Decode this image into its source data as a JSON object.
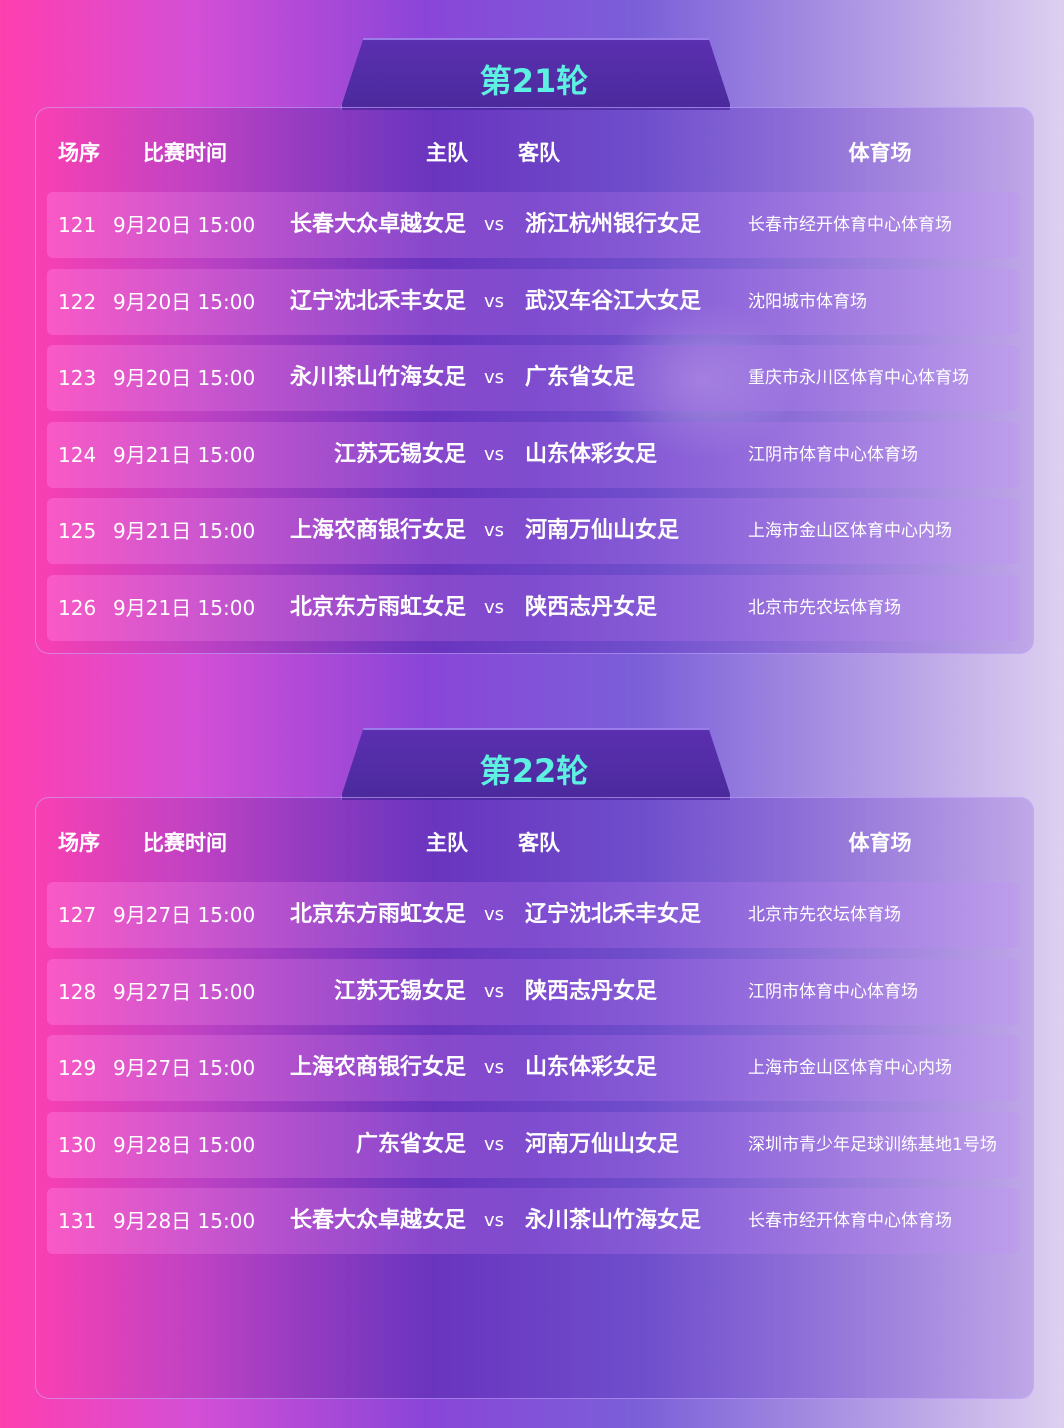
{
  "rounds": [
    {
      "title": "第21轮",
      "headers": [
        "场序",
        "比赛时间",
        "主队",
        "客队",
        "体育场"
      ],
      "rows": [
        [
          "121",
          "9月20日 15:00",
          "长春大众卓越女足",
          "vs",
          "浙江杭州银行女足",
          "长春市经开体育中心体育场"
        ],
        [
          "122",
          "9月20日 15:00",
          "辽宁沈北禾丰女足",
          "vs",
          "武汉车谷江大女足",
          "沈阳城市体育场"
        ],
        [
          "123",
          "9月20日 15:00",
          "永川茶山竹海女足",
          "vs",
          "广东省女足",
          "重庆市永川区体育中心体育场"
        ],
        [
          "124",
          "9月21日 15:00",
          "江苏无锡女足",
          "vs",
          "山东体彩女足",
          "江阴市体育中心体育场"
        ],
        [
          "125",
          "9月21日 15:00",
          "上海农商银行女足",
          "vs",
          "河南万仙山女足",
          "上海市金山区体育中心内场"
        ],
        [
          "126",
          "9月21日 15:00",
          "北京东方雨虹女足",
          "vs",
          "陕西志丹女足",
          "北京市先农坛体育场"
        ]
      ]
    },
    {
      "title": "第22轮",
      "headers": [
        "场序",
        "比赛时间",
        "主队",
        "客队",
        "体育场"
      ],
      "rows": [
        [
          "127",
          "9月27日 15:00",
          "北京东方雨虹女足",
          "vs",
          "辽宁沈北禾丰女足",
          "北京市先农坛体育场"
        ],
        [
          "128",
          "9月27日 15:00",
          "江苏无锡女足",
          "vs",
          "陕西志丹女足",
          "江阴市体育中心体育场"
        ],
        [
          "129",
          "9月27日 15:00",
          "上海农商银行女足",
          "vs",
          "山东体彩女足",
          "上海市金山区体育中心内场"
        ],
        [
          "130",
          "9月28日 15:00",
          "广东省女足",
          "vs",
          "河南万仙山女足",
          "深圳市青少年足球训练基地1号场"
        ],
        [
          "131",
          "9月28日 15:00",
          "长春大众卓越女足",
          "vs",
          "永川茶山竹海女足",
          "长春市经开体育中心体育场"
        ]
      ]
    }
  ]
}
